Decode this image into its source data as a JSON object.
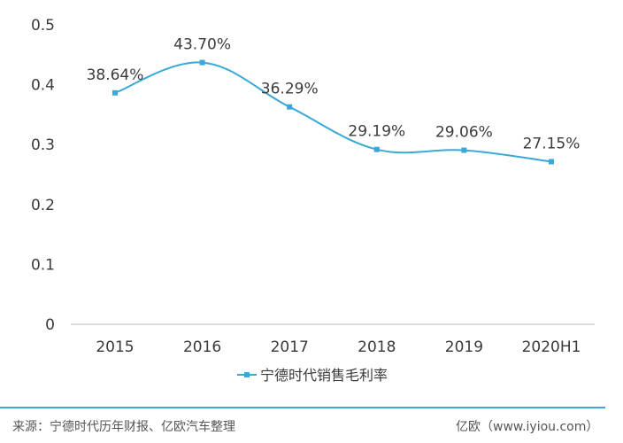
{
  "chart_data": {
    "type": "line",
    "categories": [
      "2015",
      "2016",
      "2017",
      "2018",
      "2019",
      "2020H1"
    ],
    "series": [
      {
        "name": "宁德时代销售毛利率",
        "values": [
          0.3864,
          0.437,
          0.3629,
          0.2919,
          0.2906,
          0.2715
        ],
        "labels": [
          "38.64%",
          "43.70%",
          "36.29%",
          "29.19%",
          "29.06%",
          "27.15%"
        ],
        "color": "#3aa8d8"
      }
    ],
    "yticks": [
      "0",
      "0.1",
      "0.2",
      "0.3",
      "0.4",
      "0.5"
    ],
    "ylim": [
      0,
      0.5
    ],
    "grid": false,
    "legend_position": "bottom"
  },
  "footer": {
    "source": "来源：宁德时代历年财报、亿欧汽车整理",
    "brand": "亿欧（www.iyiou.com）",
    "rule_color": "#3aa8d8"
  }
}
